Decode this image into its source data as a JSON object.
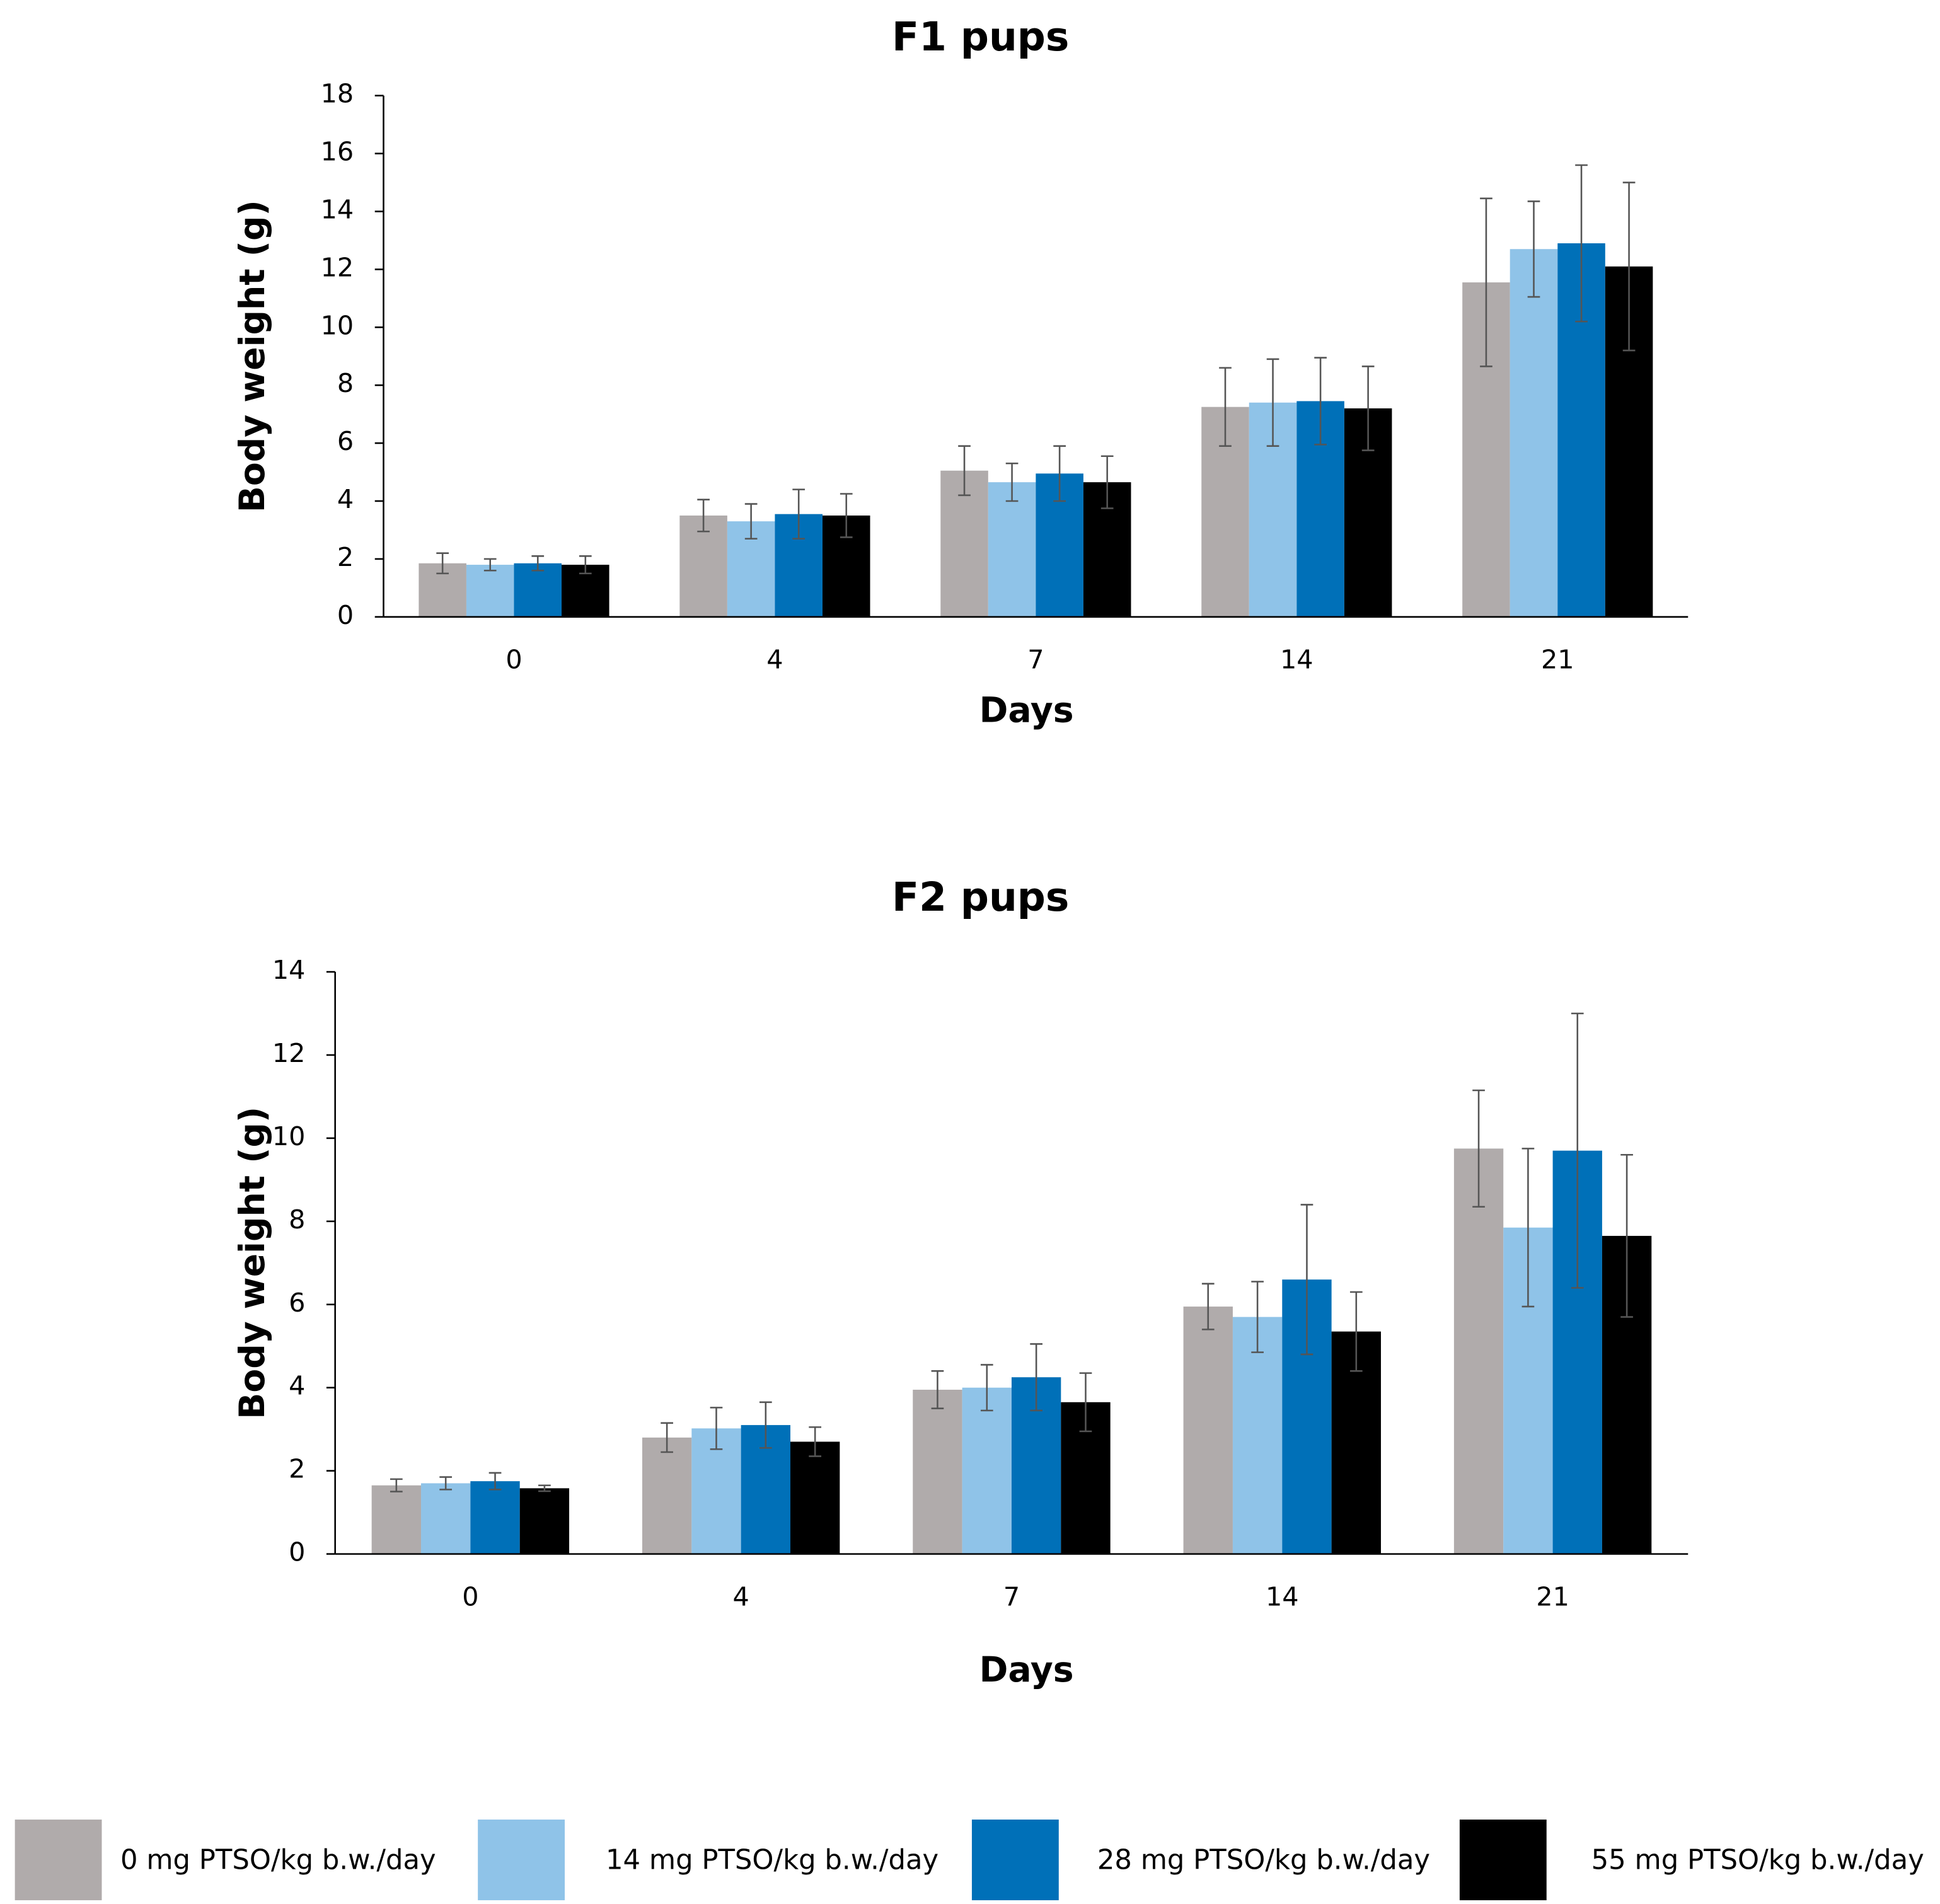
{
  "chart_data": [
    {
      "type": "bar",
      "title": "F1 pups",
      "x_label": "Days",
      "y_label": "Body weight (g)",
      "categories": [
        "0",
        "4",
        "7",
        "14",
        "21"
      ],
      "ylim": [
        0,
        18
      ],
      "yticks": [
        0,
        2,
        4,
        6,
        8,
        10,
        12,
        14,
        16,
        18
      ],
      "grid": false,
      "series": [
        {
          "name": "0 mg PTSO/kg b.w./day",
          "color": "#b0abab",
          "values": [
            1.85,
            3.5,
            5.05,
            7.25,
            11.55
          ],
          "errors": [
            0.35,
            0.55,
            0.85,
            1.35,
            2.9
          ]
        },
        {
          "name": "14 mg PTSO/kg b.w./day",
          "color": "#8fc3e8",
          "values": [
            1.8,
            3.3,
            4.65,
            7.4,
            12.7
          ],
          "errors": [
            0.2,
            0.6,
            0.65,
            1.5,
            1.65
          ]
        },
        {
          "name": "28 mg PTSO/kg b.w./day",
          "color": "#0070b8",
          "values": [
            1.85,
            3.55,
            4.95,
            7.45,
            12.9
          ],
          "errors": [
            0.25,
            0.85,
            0.95,
            1.5,
            2.7
          ]
        },
        {
          "name": "55 mg PTSO/kg b.w./day",
          "color": "#000000",
          "values": [
            1.8,
            3.5,
            4.65,
            7.2,
            12.1
          ],
          "errors": [
            0.3,
            0.75,
            0.9,
            1.45,
            2.9
          ]
        }
      ]
    },
    {
      "type": "bar",
      "title": "F2 pups",
      "x_label": "Days",
      "y_label": "Body weight (g)",
      "categories": [
        "0",
        "4",
        "7",
        "14",
        "21"
      ],
      "ylim": [
        0,
        14
      ],
      "yticks": [
        0,
        2,
        4,
        6,
        8,
        10,
        12,
        14
      ],
      "grid": false,
      "series": [
        {
          "color": "#b0abab",
          "values": [
            1.65,
            2.8,
            3.95,
            5.95,
            9.75
          ],
          "errors": [
            0.15,
            0.35,
            0.45,
            0.55,
            1.4
          ]
        },
        {
          "color": "#8fc3e8",
          "values": [
            1.7,
            3.02,
            4.0,
            5.7,
            7.85
          ],
          "errors": [
            0.15,
            0.5,
            0.55,
            0.85,
            1.9
          ]
        },
        {
          "color": "#0070b8",
          "values": [
            1.75,
            3.1,
            4.25,
            6.6,
            9.7
          ],
          "errors": [
            0.2,
            0.55,
            0.8,
            1.8,
            3.3
          ]
        },
        {
          "color": "#000000",
          "values": [
            1.58,
            2.7,
            3.65,
            5.35,
            7.65
          ],
          "errors": [
            0.07,
            0.35,
            0.7,
            0.95,
            1.95
          ]
        }
      ]
    }
  ]
}
